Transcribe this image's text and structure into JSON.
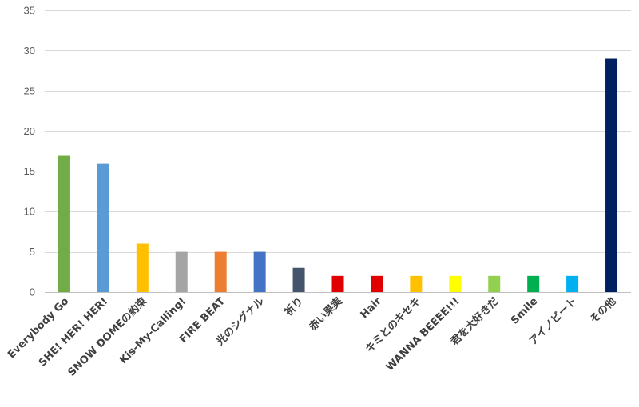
{
  "chart_data": {
    "type": "bar",
    "title": "",
    "xlabel": "",
    "ylabel": "",
    "ylim": [
      0,
      35
    ],
    "yticks": [
      0,
      5,
      10,
      15,
      20,
      25,
      30,
      35
    ],
    "grid": true,
    "legend": "none",
    "categories": [
      "Everybody Go",
      "SHE! HER! HER!",
      "SNOW DOMEの約束",
      "Kis-My-Calling!",
      "FIRE BEAT",
      "光のシグナル",
      "祈り",
      "赤い果実",
      "Hair",
      "キミとのキセキ",
      "WANNA BEEEE!!!",
      "君を大好きだ",
      "Smile",
      "アイノビート",
      "その他"
    ],
    "values": [
      17,
      16,
      6,
      5,
      5,
      5,
      3,
      2,
      2,
      2,
      2,
      2,
      2,
      2,
      29
    ],
    "colors": [
      "#70ad47",
      "#5b9bd5",
      "#ffc000",
      "#a5a5a5",
      "#ed7d31",
      "#4472c4",
      "#44546a",
      "#e00000",
      "#e00000",
      "#ffc000",
      "#ffff00",
      "#92d050",
      "#00b050",
      "#00b0f0",
      "#002060"
    ]
  }
}
